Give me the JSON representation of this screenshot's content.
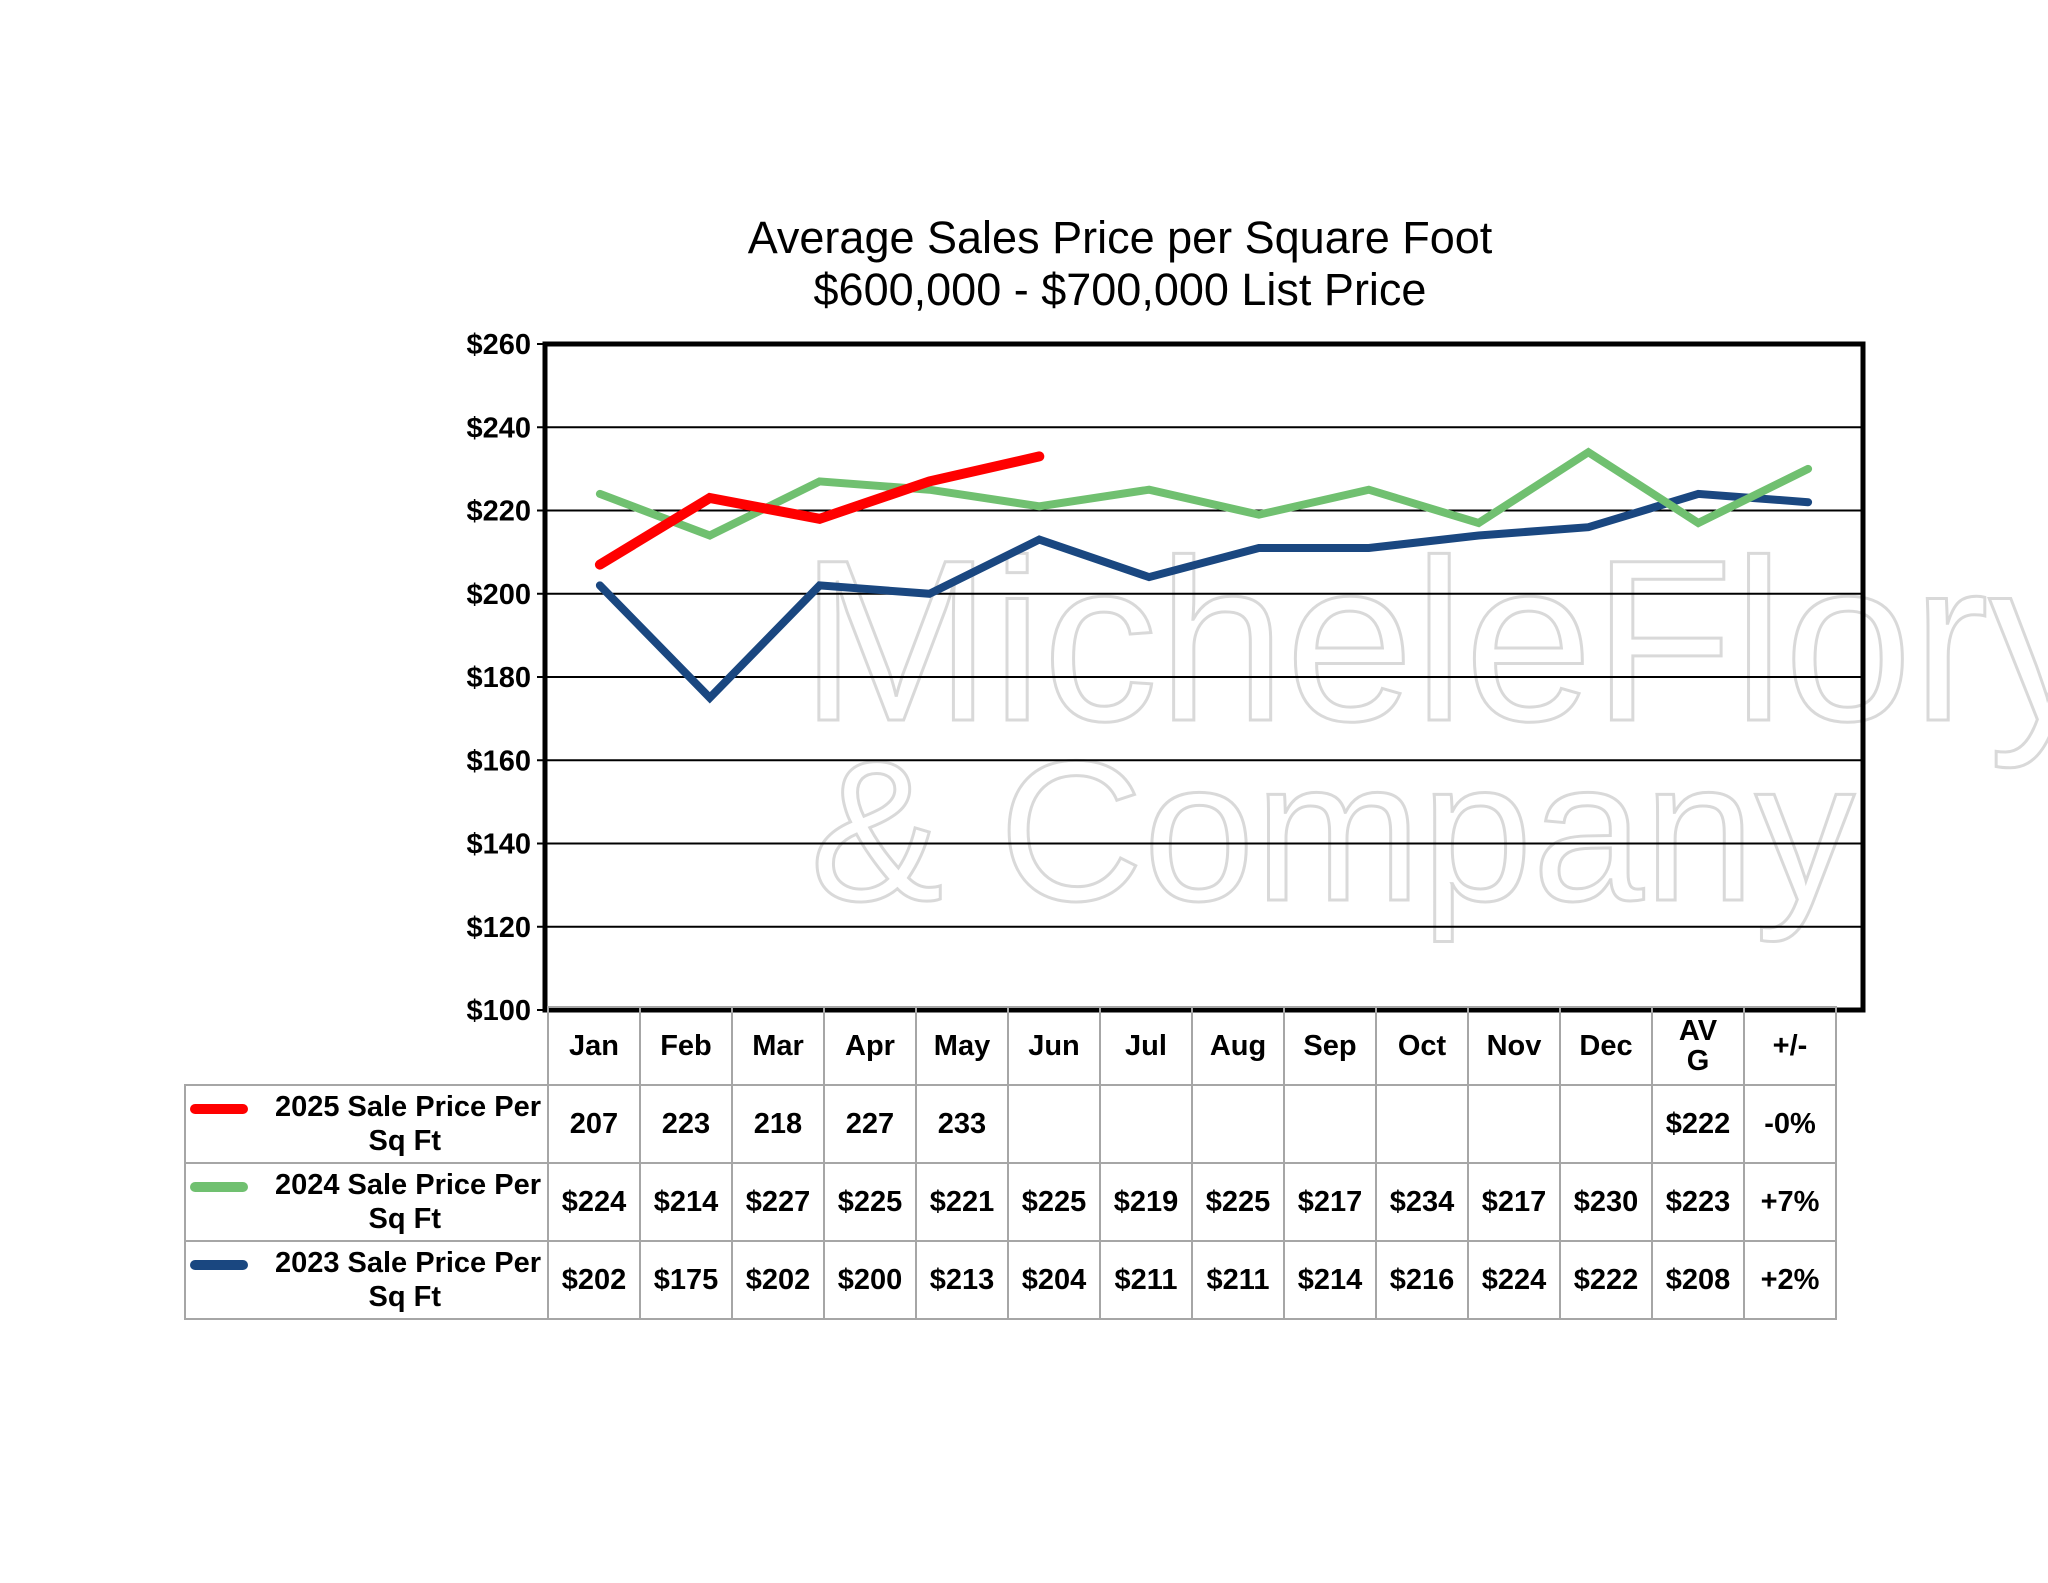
{
  "chart_data": {
    "type": "line",
    "title": "Average Sales Price per Square Foot",
    "subtitle": "$600,000 - $700,000 List Price",
    "categories": [
      "Jan",
      "Feb",
      "Mar",
      "Apr",
      "May",
      "Jun",
      "Jul",
      "Aug",
      "Sep",
      "Oct",
      "Nov",
      "Dec"
    ],
    "ylim": [
      100,
      260
    ],
    "y_ticks": [
      100,
      120,
      140,
      160,
      180,
      200,
      220,
      240,
      260
    ],
    "y_tick_labels": [
      "$100",
      "$120",
      "$140",
      "$160",
      "$180",
      "$200",
      "$220",
      "$240",
      "$260"
    ],
    "grid": true,
    "series": [
      {
        "name": "2025 Sale Price Per Sq Ft",
        "color": "#ff0000",
        "values": [
          207,
          223,
          218,
          227,
          233,
          null,
          null,
          null,
          null,
          null,
          null,
          null
        ]
      },
      {
        "name": "2024 Sale Price Per Sq Ft",
        "color": "#70c070",
        "values": [
          224,
          214,
          227,
          225,
          221,
          225,
          219,
          225,
          217,
          234,
          217,
          230
        ]
      },
      {
        "name": "2023 Sale Price Per Sq Ft",
        "color": "#1a4780",
        "values": [
          202,
          175,
          202,
          200,
          213,
          204,
          211,
          211,
          214,
          216,
          224,
          222
        ]
      }
    ],
    "watermark": [
      "MicheleFlory",
      "& Company"
    ]
  },
  "table": {
    "headers": [
      "Jan",
      "Feb",
      "Mar",
      "Apr",
      "May",
      "Jun",
      "Jul",
      "Aug",
      "Sep",
      "Oct",
      "Nov",
      "Dec"
    ],
    "avg_header_line1": "AV",
    "avg_header_line2": "G",
    "change_header": "+/-",
    "rows": [
      {
        "label_line1": "2025 Sale Price Per",
        "label_line2": "Sq Ft",
        "color": "#ff0000",
        "cells": [
          "207",
          "223",
          "218",
          "227",
          "233",
          "",
          "",
          "",
          "",
          "",
          "",
          ""
        ],
        "avg": "$222",
        "change": "-0%"
      },
      {
        "label_line1": "2024 Sale Price Per",
        "label_line2": "Sq Ft",
        "color": "#70c070",
        "cells": [
          "$224",
          "$214",
          "$227",
          "$225",
          "$221",
          "$225",
          "$219",
          "$225",
          "$217",
          "$234",
          "$217",
          "$230"
        ],
        "avg": "$223",
        "change": "+7%"
      },
      {
        "label_line1": "2023 Sale Price Per",
        "label_line2": "Sq Ft",
        "color": "#1a4780",
        "cells": [
          "$202",
          "$175",
          "$202",
          "$200",
          "$213",
          "$204",
          "$211",
          "$211",
          "$214",
          "$216",
          "$224",
          "$222"
        ],
        "avg": "$208",
        "change": "+2%"
      }
    ]
  }
}
